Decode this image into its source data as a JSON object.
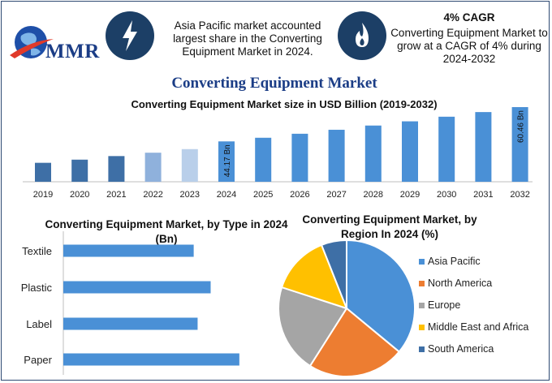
{
  "header": {
    "logo_text": "MMR",
    "info1_lines": [
      "Asia Pacific market accounted",
      "largest share in the Converting",
      "Equipment Market in 2024."
    ],
    "info2_heading": "4% CAGR",
    "info2_lines": [
      "Converting Equipment Market to",
      "grow at a CAGR of 4% during",
      "2024-2032"
    ],
    "icons": [
      "lightning-bolt-icon",
      "flame-icon"
    ]
  },
  "main_title": "Converting Equipment Market",
  "colors": {
    "bar_2019_2021": "#3e6fa6",
    "bar_2022": "#8fb1dc",
    "bar_2023": "#b9cfea",
    "bar_forecast": "#4a90d6",
    "type_bars": "#4a90d6",
    "asia_pacific": "#4a90d6",
    "north_america": "#ed7d31",
    "europe": "#a5a5a5",
    "mea": "#ffc000",
    "south_america": "#3e6fa6"
  },
  "chart_data": [
    {
      "type": "bar",
      "title": "Converting Equipment Market size in USD Billion (2019-2032)",
      "categories": [
        "2019",
        "2020",
        "2021",
        "2022",
        "2023",
        "2024",
        "2025",
        "2026",
        "2027",
        "2028",
        "2029",
        "2030",
        "2031",
        "2032"
      ],
      "values": [
        34.0,
        35.5,
        37.2,
        38.8,
        40.5,
        44.17,
        45.9,
        47.8,
        49.7,
        51.7,
        53.7,
        55.9,
        58.1,
        60.46
      ],
      "data_labels": {
        "5": "44.17 Bn",
        "13": "60.46 Bn"
      },
      "ylim": [
        25,
        62
      ]
    },
    {
      "type": "bar",
      "orientation": "horizontal",
      "title": "Converting Equipment Market, by Type in 2024 (Bn)",
      "categories": [
        "Textile",
        "Plastic",
        "Label",
        "Paper"
      ],
      "values": [
        10.0,
        11.3,
        10.3,
        13.5
      ],
      "xlim": [
        0,
        16
      ]
    },
    {
      "type": "pie",
      "title": "Converting Equipment Market, by Region In 2024 (%)",
      "labels": [
        "Asia Pacific",
        "North America",
        "Europe",
        "Middle East and Africa",
        "South America"
      ],
      "values": [
        36,
        23,
        21,
        14,
        6
      ],
      "legend_position": "right"
    }
  ]
}
